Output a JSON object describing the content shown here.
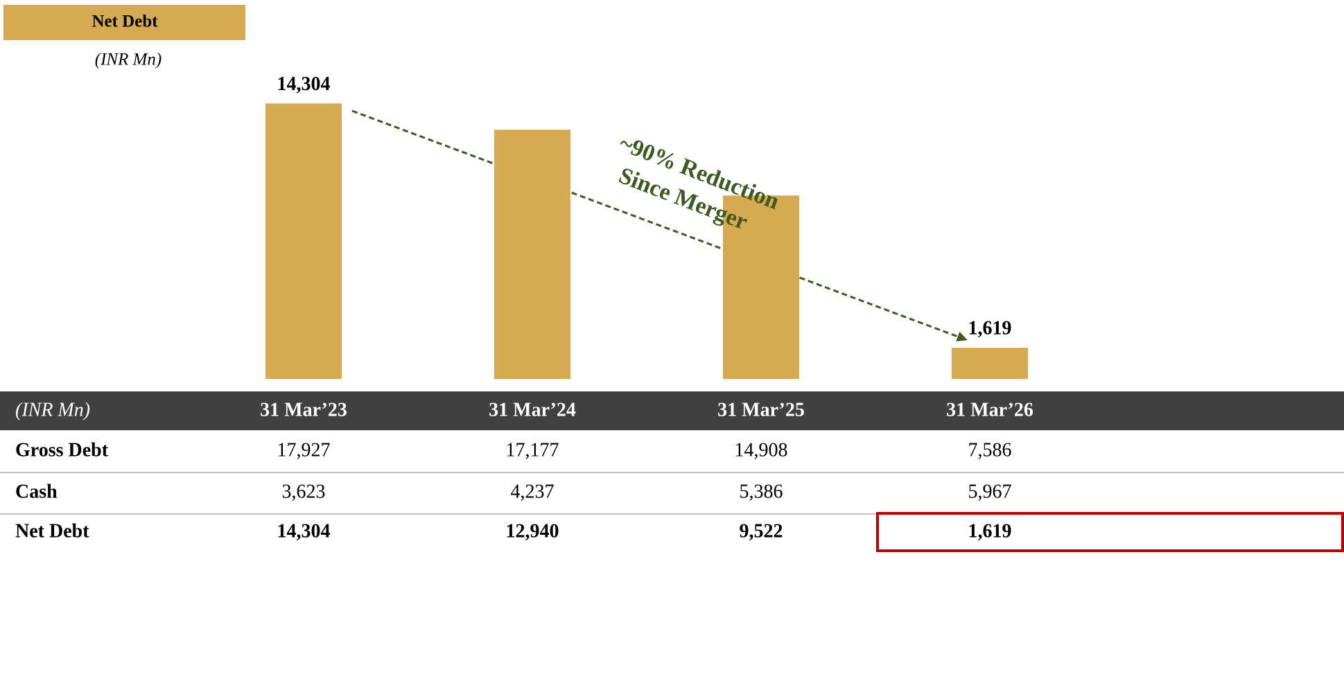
{
  "chart_data": {
    "type": "bar",
    "title": "Net Debt",
    "subtitle": "(INR Mn)",
    "categories": [
      "31 Mar’23",
      "31 Mar’24",
      "31 Mar’25",
      "31 Mar’26"
    ],
    "values": [
      14304,
      12940,
      9522,
      1619
    ],
    "value_labels": [
      "14,304",
      null,
      null,
      "1,619"
    ],
    "color": "#d6aa50",
    "ylim": [
      0,
      15000
    ],
    "annotation": [
      "~90% Reduction",
      "Since Merger"
    ],
    "annotation_color": "#3d5a1f"
  },
  "table": {
    "corner": "(INR Mn)",
    "rows": [
      [
        "Gross Debt",
        "17,927",
        "17,177",
        "14,908",
        "7,586"
      ],
      [
        "Cash",
        "3,623",
        "4,237",
        "5,386",
        "5,967"
      ],
      [
        "Net Debt",
        "14,304",
        "12,940",
        "9,522",
        "1,619"
      ]
    ]
  }
}
